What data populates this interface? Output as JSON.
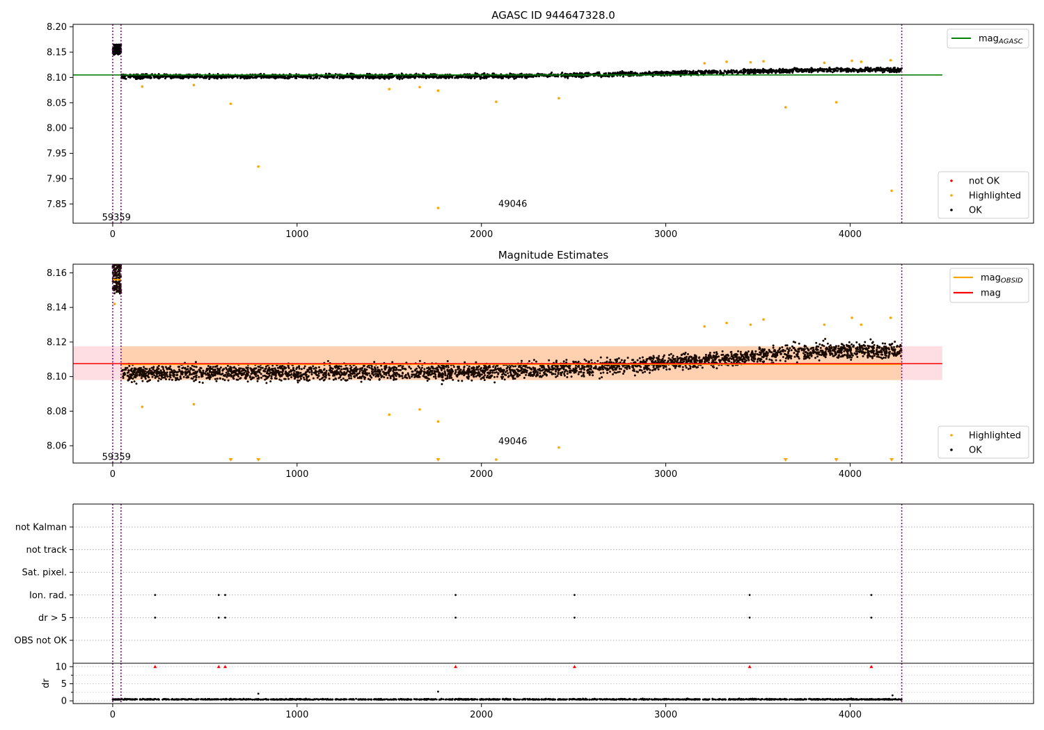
{
  "chart_data": [
    {
      "type": "scatter",
      "title": "AGASC ID 944647328.0",
      "xlabel": "",
      "ylabel": "",
      "xlim": [
        -215,
        4995
      ],
      "ylim": [
        7.812,
        8.205
      ],
      "x_ticks": [
        0,
        1000,
        2000,
        3000,
        4000
      ],
      "y_ticks": [
        7.85,
        7.9,
        7.95,
        8.0,
        8.05,
        8.1,
        8.15,
        8.2
      ],
      "grid": false,
      "vlines": [
        {
          "x": 0,
          "color": "#800080"
        },
        {
          "x": 45,
          "color": "#800080"
        },
        {
          "x": 4280,
          "color": "#800080"
        }
      ],
      "mag_agasc": 8.105,
      "annotations": [
        {
          "text": "59359",
          "x": 20,
          "y": 7.823
        },
        {
          "text": "49046",
          "x": 2170,
          "y": 7.85
        }
      ],
      "legend_lines": [
        {
          "name": "mag",
          "sub": "AGASC",
          "color": "#008000"
        }
      ],
      "legend_points": [
        {
          "name": "not OK",
          "color": "#ff0000"
        },
        {
          "name": "Highlighted",
          "color": "#ffa500"
        },
        {
          "name": "OK",
          "color": "#000000"
        }
      ],
      "early_cluster": {
        "x": [
          0,
          45
        ],
        "y": [
          8.145,
          8.165
        ]
      },
      "ok_trend": {
        "x": [
          45,
          2200,
          3000,
          3500,
          3800,
          4280
        ],
        "y": [
          8.102,
          8.103,
          8.108,
          8.112,
          8.115,
          8.115
        ]
      },
      "highlighted": [
        {
          "x": 160,
          "y": 8.082
        },
        {
          "x": 440,
          "y": 8.085
        },
        {
          "x": 640,
          "y": 8.048
        },
        {
          "x": 790,
          "y": 7.924
        },
        {
          "x": 1500,
          "y": 8.077
        },
        {
          "x": 1665,
          "y": 8.081
        },
        {
          "x": 1765,
          "y": 8.074
        },
        {
          "x": 1765,
          "y": 7.842
        },
        {
          "x": 2080,
          "y": 8.052
        },
        {
          "x": 2420,
          "y": 8.059
        },
        {
          "x": 3650,
          "y": 8.041
        },
        {
          "x": 3925,
          "y": 8.051
        },
        {
          "x": 4225,
          "y": 7.876
        },
        {
          "x": 3210,
          "y": 8.128
        },
        {
          "x": 3330,
          "y": 8.131
        },
        {
          "x": 3460,
          "y": 8.13
        },
        {
          "x": 3530,
          "y": 8.132
        },
        {
          "x": 3860,
          "y": 8.129
        },
        {
          "x": 4010,
          "y": 8.133
        },
        {
          "x": 4060,
          "y": 8.131
        },
        {
          "x": 4220,
          "y": 8.134
        }
      ]
    },
    {
      "type": "scatter",
      "title": "Magnitude Estimates",
      "xlabel": "",
      "ylabel": "",
      "xlim": [
        -215,
        4995
      ],
      "ylim": [
        8.05,
        8.165
      ],
      "x_ticks": [
        0,
        1000,
        2000,
        3000,
        4000
      ],
      "y_ticks": [
        8.06,
        8.08,
        8.1,
        8.12,
        8.14,
        8.16
      ],
      "grid": false,
      "vlines": [
        {
          "x": 0,
          "color": "#800080"
        },
        {
          "x": 45,
          "color": "#800080"
        },
        {
          "x": 4280,
          "color": "#800080"
        }
      ],
      "mag": 8.1075,
      "mag_band": [
        8.098,
        8.1175
      ],
      "annotations": [
        {
          "text": "59359",
          "x": 20,
          "y": 8.0535
        },
        {
          "text": "49046",
          "x": 2170,
          "y": 8.0625
        }
      ],
      "legend_lines": [
        {
          "name": "mag",
          "sub": "OBSID",
          "color": "#ffa500"
        },
        {
          "name": "mag",
          "sub": "",
          "color": "#ff0000"
        }
      ],
      "legend_points": [
        {
          "name": "Highlighted",
          "color": "#ffa500"
        },
        {
          "name": "OK",
          "color": "#000000"
        }
      ],
      "offscale_low_x": [
        640,
        790,
        1765,
        3650,
        3925,
        4225
      ],
      "highlighted": [
        {
          "x": 160,
          "y": 8.0825
        },
        {
          "x": 440,
          "y": 8.084
        },
        {
          "x": 1500,
          "y": 8.078
        },
        {
          "x": 1665,
          "y": 8.081
        },
        {
          "x": 1765,
          "y": 8.074
        },
        {
          "x": 2080,
          "y": 8.052
        },
        {
          "x": 2420,
          "y": 8.059
        },
        {
          "x": 3210,
          "y": 8.129
        },
        {
          "x": 3330,
          "y": 8.131
        },
        {
          "x": 3460,
          "y": 8.13
        },
        {
          "x": 3530,
          "y": 8.133
        },
        {
          "x": 3860,
          "y": 8.13
        },
        {
          "x": 4010,
          "y": 8.134
        },
        {
          "x": 4060,
          "y": 8.13
        },
        {
          "x": 4220,
          "y": 8.134
        },
        {
          "x": 10,
          "y": 8.142
        }
      ]
    },
    {
      "type": "scatter",
      "title": "",
      "xlim": [
        -215,
        4995
      ],
      "categories": [
        "not Kalman",
        "not track",
        "Sat. pixel.",
        "Ion. rad.",
        "dr > 5",
        "OBS not OK"
      ],
      "grid": "dotted-y",
      "vlines": [
        {
          "x": 0,
          "color": "#800080"
        },
        {
          "x": 45,
          "color": "#800080"
        },
        {
          "x": 4280,
          "color": "#800080"
        }
      ],
      "flags": [
        {
          "category": "Ion. rad.",
          "x": [
            230,
            575,
            610,
            1860,
            2505,
            3455,
            4115
          ]
        },
        {
          "category": "dr > 5",
          "x": [
            230,
            575,
            610,
            1860,
            2505,
            3455,
            4115
          ]
        }
      ]
    },
    {
      "type": "scatter",
      "title": "",
      "ylabel": "dr",
      "xlim": [
        -215,
        4995
      ],
      "ylim": [
        -0.8,
        11
      ],
      "x_ticks": [
        0,
        1000,
        2000,
        3000,
        4000
      ],
      "y_ticks": [
        0,
        5,
        10
      ],
      "vlines": [
        {
          "x": 0,
          "color": "#800080"
        },
        {
          "x": 45,
          "color": "#800080"
        },
        {
          "x": 4280,
          "color": "#800080"
        }
      ],
      "flags_at_10": [
        230,
        575,
        610,
        1860,
        2505,
        3455,
        4115
      ],
      "outliers": [
        {
          "x": 790,
          "y": 2.1
        },
        {
          "x": 1765,
          "y": 2.7
        },
        {
          "x": 4230,
          "y": 1.6
        }
      ],
      "baseline_mean": 0.35
    }
  ]
}
